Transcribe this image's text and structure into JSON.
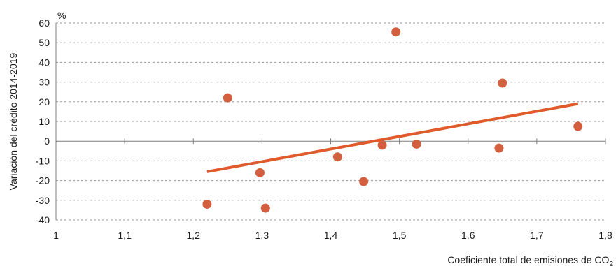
{
  "chart_data": {
    "type": "scatter",
    "y_unit_label": "%",
    "xlabel": "Coeficiente total de emisiones de CO",
    "xlabel_subscript": "2",
    "ylabel": "Variación del crédito 2014-2019",
    "xlim": [
      1,
      1.8
    ],
    "ylim": [
      -40,
      60
    ],
    "x_ticks": [
      "1",
      "1,1",
      "1,2",
      "1,3",
      "1,4",
      "1,5",
      "1,6",
      "1,7",
      "1,8"
    ],
    "x_tick_values": [
      1,
      1.1,
      1.2,
      1.3,
      1.4,
      1.5,
      1.6,
      1.7,
      1.8
    ],
    "y_ticks": [
      "60",
      "50",
      "40",
      "30",
      "20",
      "10",
      "0",
      "-10",
      "-20",
      "-30",
      "-40"
    ],
    "y_tick_values": [
      60,
      50,
      40,
      30,
      20,
      10,
      0,
      -10,
      -20,
      -30,
      -40
    ],
    "grid": "horizontal dashed",
    "series": [
      {
        "points": [
          {
            "x": 1.22,
            "y": -32
          },
          {
            "x": 1.25,
            "y": 22
          },
          {
            "x": 1.297,
            "y": -16
          },
          {
            "x": 1.305,
            "y": -34
          },
          {
            "x": 1.41,
            "y": -8
          },
          {
            "x": 1.448,
            "y": -20.5
          },
          {
            "x": 1.475,
            "y": -2
          },
          {
            "x": 1.495,
            "y": 55.5
          },
          {
            "x": 1.525,
            "y": -1.5
          },
          {
            "x": 1.645,
            "y": -3.5
          },
          {
            "x": 1.65,
            "y": 29.5
          },
          {
            "x": 1.76,
            "y": 7.5
          }
        ]
      }
    ],
    "trendline": {
      "x": [
        1.22,
        1.76
      ],
      "y": [
        -15.5,
        19
      ]
    },
    "colors": {
      "points": "#d35f3f",
      "trendline": "#e05a2b",
      "grid": "#9a9a9a",
      "axis": "#7f7f7f"
    }
  }
}
